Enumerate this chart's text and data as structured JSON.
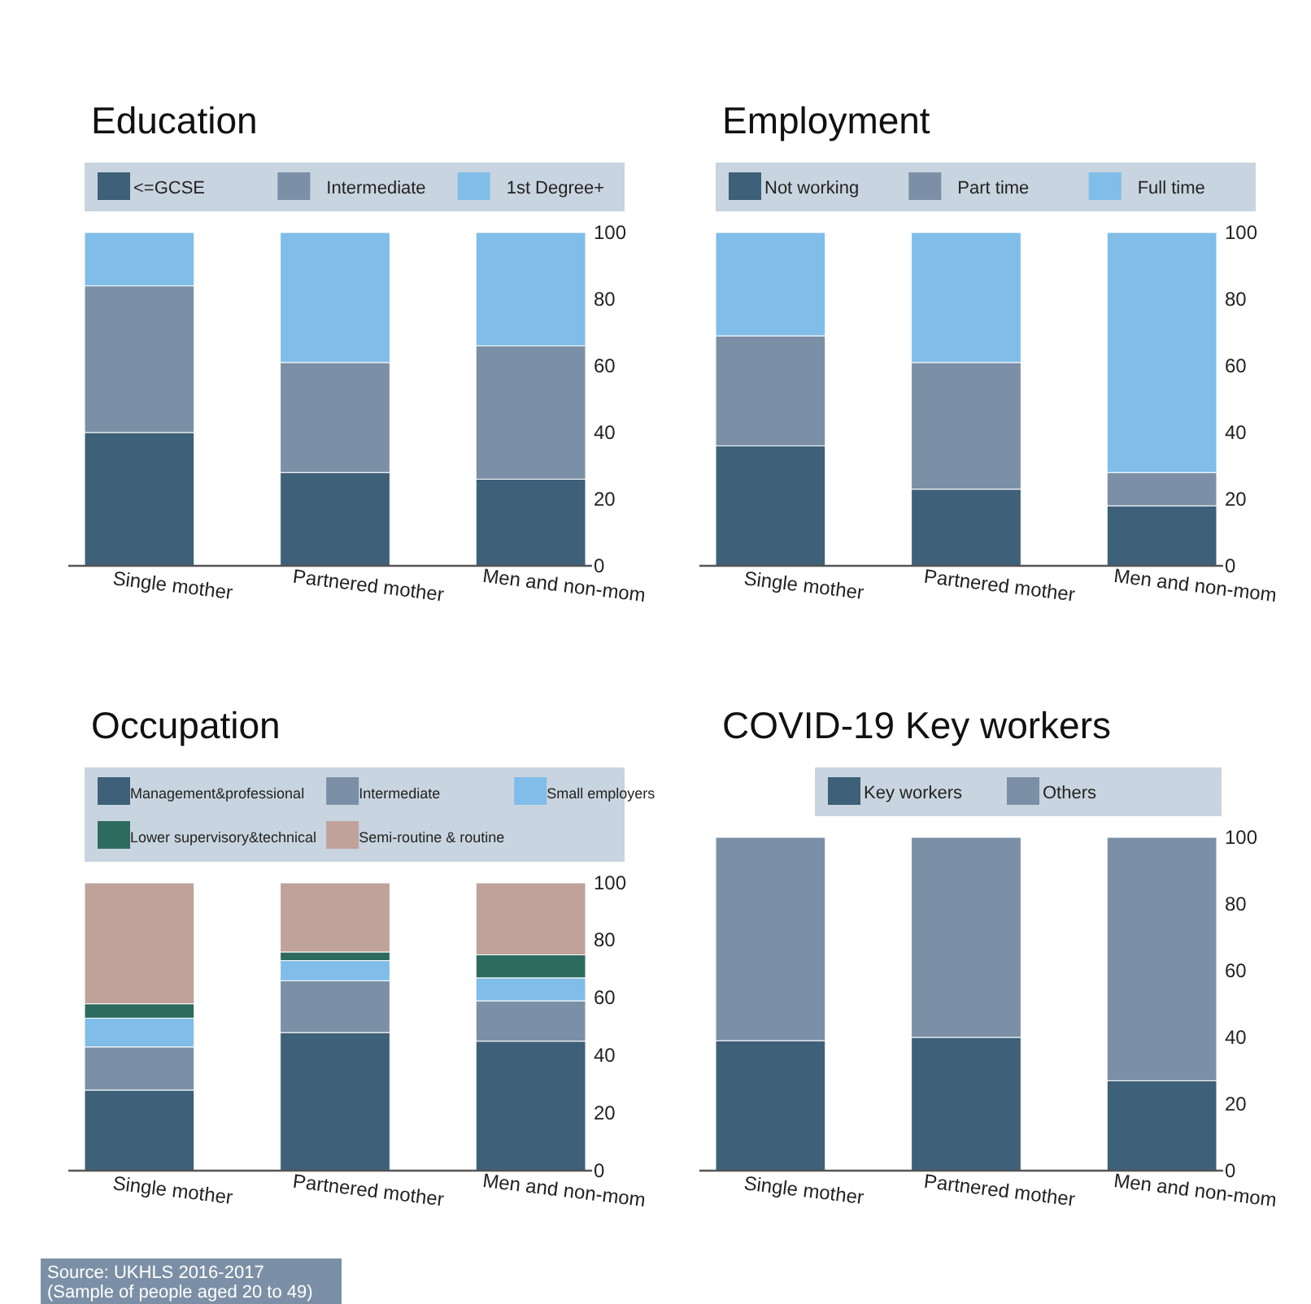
{
  "chart_data": [
    {
      "type": "bar",
      "title": "Education",
      "stacked": true,
      "legend": "top",
      "categories": [
        "Single mother",
        "Partnered mother",
        "Men and non-mom"
      ],
      "ylim": [
        0,
        100
      ],
      "yticks": [
        0,
        20,
        40,
        60,
        80,
        100
      ],
      "series": [
        {
          "name": "<=GCSE",
          "color": "#3e6079",
          "values": [
            40,
            28,
            26
          ]
        },
        {
          "name": "Intermediate",
          "color": "#7b90a6",
          "values": [
            44,
            33,
            40
          ]
        },
        {
          "name": "1st Degree+",
          "color": "#80bde8",
          "values": [
            16,
            39,
            34
          ]
        }
      ]
    },
    {
      "type": "bar",
      "title": "Employment",
      "stacked": true,
      "legend": "top",
      "categories": [
        "Single mother",
        "Partnered mother",
        "Men and non-mom"
      ],
      "ylim": [
        0,
        100
      ],
      "yticks": [
        0,
        20,
        40,
        60,
        80,
        100
      ],
      "series": [
        {
          "name": "Not working",
          "color": "#3e6079",
          "values": [
            36,
            23,
            18
          ]
        },
        {
          "name": "Part time",
          "color": "#7b90a6",
          "values": [
            33,
            38,
            10
          ]
        },
        {
          "name": "Full time",
          "color": "#80bde8",
          "values": [
            31,
            39,
            72
          ]
        }
      ]
    },
    {
      "type": "bar",
      "title": "Occupation",
      "stacked": true,
      "legend": "top",
      "categories": [
        "Single mother",
        "Partnered mother",
        "Men and non-mom"
      ],
      "ylim": [
        0,
        100
      ],
      "yticks": [
        0,
        20,
        40,
        60,
        80,
        100
      ],
      "annotations": [
        "Source: UKHLS 2016-2017\n(Sample of people aged 20 to 49)"
      ],
      "series": [
        {
          "name": "Management&professional",
          "color": "#3e6079",
          "values": [
            28,
            48,
            45
          ]
        },
        {
          "name": "Intermediate",
          "color": "#7b90a6",
          "values": [
            15,
            18,
            14
          ]
        },
        {
          "name": "Small employers",
          "color": "#80bde8",
          "values": [
            10,
            7,
            8
          ]
        },
        {
          "name": "Lower supervisory&technical",
          "color": "#2e6b5f",
          "values": [
            5,
            3,
            8
          ]
        },
        {
          "name": "Semi-routine & routine",
          "color": "#bfa29a",
          "values": [
            42,
            24,
            25
          ]
        }
      ]
    },
    {
      "type": "bar",
      "title": "COVID-19 Key workers",
      "stacked": true,
      "legend": "top",
      "categories": [
        "Single mother",
        "Partnered mother",
        "Men and non-mom"
      ],
      "ylim": [
        0,
        100
      ],
      "yticks": [
        0,
        20,
        40,
        60,
        80,
        100
      ],
      "series": [
        {
          "name": "Key workers",
          "color": "#3e6079",
          "values": [
            39,
            40,
            27
          ]
        },
        {
          "name": "Others",
          "color": "#7b90a6",
          "values": [
            61,
            60,
            73
          ]
        }
      ]
    }
  ]
}
